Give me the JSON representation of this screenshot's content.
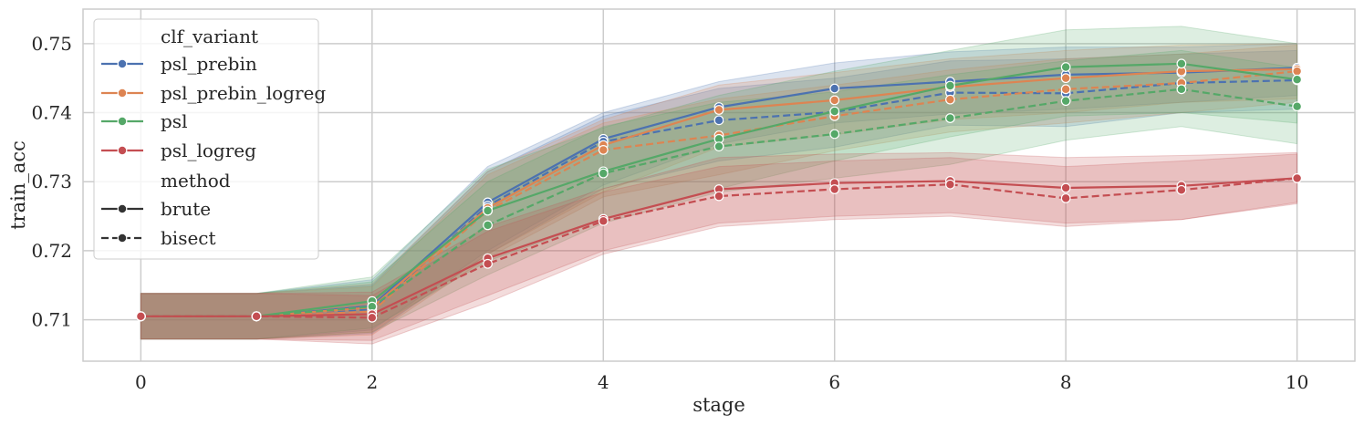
{
  "chart_data": {
    "type": "line",
    "title": "",
    "xlabel": "stage",
    "ylabel": "train_acc",
    "xlim": [
      -0.5,
      10.5
    ],
    "ylim": [
      0.704,
      0.755
    ],
    "xticks": [
      0,
      2,
      4,
      6,
      8,
      10
    ],
    "yticks": [
      0.71,
      0.72,
      0.73,
      0.74,
      0.75
    ],
    "ytick_labels": [
      "0.71",
      "0.72",
      "0.73",
      "0.74",
      "0.75"
    ],
    "grid": true,
    "legend_placement": "upper-left",
    "legend": {
      "hue_title": "clf_variant",
      "style_title": "method",
      "hue_entries": [
        {
          "label": "psl_prebin",
          "color": "#4c72b0"
        },
        {
          "label": "psl_prebin_logreg",
          "color": "#dd8452"
        },
        {
          "label": "psl",
          "color": "#55a868"
        },
        {
          "label": "psl_logreg",
          "color": "#c44e52"
        }
      ],
      "style_entries": [
        {
          "label": "brute",
          "dash": "solid"
        },
        {
          "label": "bisect",
          "dash": "dashed"
        }
      ]
    },
    "series": [
      {
        "name": "psl_prebin",
        "method": "brute",
        "color": "#4c72b0",
        "dash": "solid",
        "x": [
          0,
          1,
          2,
          3,
          4,
          5,
          6,
          7,
          8,
          9,
          10
        ],
        "y": [
          0.7105,
          0.7105,
          0.712,
          0.727,
          0.7362,
          0.7408,
          0.7435,
          0.7445,
          0.7455,
          0.7458,
          0.7465
        ],
        "lower": [
          0.7072,
          0.7072,
          0.7085,
          0.72,
          0.7295,
          0.7355,
          0.7385,
          0.7398,
          0.7405,
          0.7415,
          0.7425
        ],
        "upper": [
          0.7138,
          0.7138,
          0.7158,
          0.7322,
          0.74,
          0.7445,
          0.7472,
          0.7488,
          0.7495,
          0.7495,
          0.75
        ]
      },
      {
        "name": "psl_prebin",
        "method": "bisect",
        "color": "#4c72b0",
        "dash": "dashed",
        "x": [
          0,
          1,
          2,
          3,
          4,
          5,
          6,
          7,
          8,
          9,
          10
        ],
        "y": [
          0.7105,
          0.7105,
          0.7115,
          0.7265,
          0.7358,
          0.7389,
          0.7401,
          0.7429,
          0.7428,
          0.7443,
          0.7447
        ],
        "lower": [
          0.7072,
          0.7072,
          0.708,
          0.7195,
          0.729,
          0.733,
          0.735,
          0.7382,
          0.738,
          0.74,
          0.7405
        ],
        "upper": [
          0.7138,
          0.7138,
          0.715,
          0.7315,
          0.7395,
          0.7435,
          0.745,
          0.7475,
          0.7478,
          0.7485,
          0.749
        ]
      },
      {
        "name": "psl_prebin_logreg",
        "method": "brute",
        "color": "#dd8452",
        "dash": "solid",
        "x": [
          0,
          1,
          2,
          3,
          4,
          5,
          6,
          7,
          8,
          9,
          10
        ],
        "y": [
          0.7105,
          0.7105,
          0.7118,
          0.7262,
          0.7353,
          0.7404,
          0.7418,
          0.7437,
          0.745,
          0.746,
          0.7463
        ],
        "lower": [
          0.7072,
          0.7072,
          0.7082,
          0.7195,
          0.7285,
          0.735,
          0.7368,
          0.739,
          0.74,
          0.7415,
          0.742
        ],
        "upper": [
          0.7138,
          0.7138,
          0.7152,
          0.7315,
          0.739,
          0.744,
          0.7458,
          0.7478,
          0.749,
          0.7498,
          0.75
        ]
      },
      {
        "name": "psl_prebin_logreg",
        "method": "bisect",
        "color": "#dd8452",
        "dash": "dashed",
        "x": [
          0,
          1,
          2,
          3,
          4,
          5,
          6,
          7,
          8,
          9,
          10
        ],
        "y": [
          0.7105,
          0.7105,
          0.7112,
          0.7258,
          0.7346,
          0.7367,
          0.7395,
          0.7419,
          0.7434,
          0.7443,
          0.746
        ],
        "lower": [
          0.7072,
          0.7072,
          0.7078,
          0.719,
          0.7278,
          0.731,
          0.7345,
          0.7372,
          0.7385,
          0.74,
          0.7415
        ],
        "upper": [
          0.7138,
          0.7138,
          0.7148,
          0.731,
          0.7385,
          0.742,
          0.744,
          0.7462,
          0.7478,
          0.7485,
          0.7498
        ]
      },
      {
        "name": "psl",
        "method": "brute",
        "color": "#55a868",
        "dash": "solid",
        "x": [
          0,
          1,
          2,
          3,
          4,
          5,
          6,
          7,
          8,
          9,
          10
        ],
        "y": [
          0.7105,
          0.7105,
          0.7127,
          0.7258,
          0.7315,
          0.7362,
          0.7402,
          0.7439,
          0.7466,
          0.7471,
          0.7448
        ],
        "lower": [
          0.7072,
          0.7072,
          0.7088,
          0.7185,
          0.7245,
          0.729,
          0.733,
          0.7365,
          0.7395,
          0.74,
          0.7385
        ],
        "upper": [
          0.7138,
          0.7138,
          0.7162,
          0.7318,
          0.7378,
          0.7425,
          0.746,
          0.749,
          0.752,
          0.7525,
          0.75
        ]
      },
      {
        "name": "psl",
        "method": "bisect",
        "color": "#55a868",
        "dash": "dashed",
        "x": [
          0,
          1,
          2,
          3,
          4,
          5,
          6,
          7,
          8,
          9,
          10
        ],
        "y": [
          0.7105,
          0.7105,
          0.7119,
          0.7237,
          0.7312,
          0.7351,
          0.7369,
          0.7392,
          0.7417,
          0.7434,
          0.7409
        ],
        "lower": [
          0.7072,
          0.7072,
          0.7082,
          0.7165,
          0.724,
          0.7285,
          0.7305,
          0.7325,
          0.736,
          0.738,
          0.7355
        ],
        "upper": [
          0.7138,
          0.7138,
          0.7155,
          0.73,
          0.738,
          0.7415,
          0.743,
          0.7455,
          0.7475,
          0.749,
          0.7465
        ]
      },
      {
        "name": "psl_logreg",
        "method": "brute",
        "color": "#c44e52",
        "dash": "solid",
        "x": [
          0,
          1,
          2,
          3,
          4,
          5,
          6,
          7,
          8,
          9,
          10
        ],
        "y": [
          0.7105,
          0.7105,
          0.7108,
          0.7189,
          0.7246,
          0.7289,
          0.7298,
          0.7301,
          0.7291,
          0.7294,
          0.7305
        ],
        "lower": [
          0.7072,
          0.7072,
          0.707,
          0.7135,
          0.72,
          0.724,
          0.725,
          0.7255,
          0.724,
          0.7245,
          0.727
        ],
        "upper": [
          0.7138,
          0.7138,
          0.714,
          0.7235,
          0.729,
          0.7335,
          0.734,
          0.7342,
          0.7335,
          0.7338,
          0.7342
        ]
      },
      {
        "name": "psl_logreg",
        "method": "bisect",
        "color": "#c44e52",
        "dash": "dashed",
        "x": [
          0,
          1,
          2,
          3,
          4,
          5,
          6,
          7,
          8,
          9,
          10
        ],
        "y": [
          0.7105,
          0.7105,
          0.7103,
          0.7181,
          0.7243,
          0.7279,
          0.7289,
          0.7296,
          0.7276,
          0.7288,
          0.7305
        ],
        "lower": [
          0.7072,
          0.7072,
          0.7065,
          0.7125,
          0.7195,
          0.7235,
          0.7245,
          0.725,
          0.7235,
          0.7245,
          0.7268
        ],
        "upper": [
          0.7138,
          0.7138,
          0.7135,
          0.7228,
          0.7285,
          0.7322,
          0.733,
          0.7335,
          0.7322,
          0.733,
          0.734
        ]
      }
    ]
  }
}
